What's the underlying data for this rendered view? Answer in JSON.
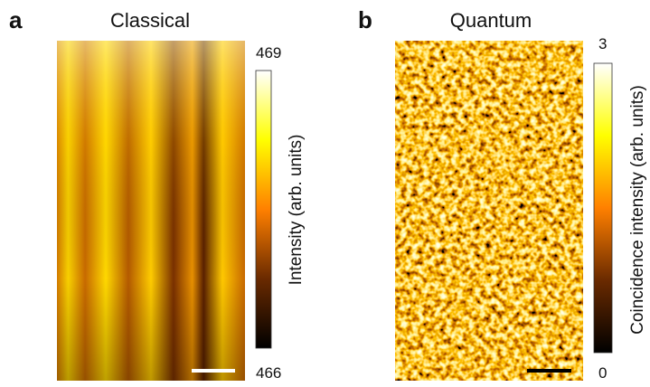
{
  "panels": [
    {
      "label": "a",
      "title": "Classical",
      "colorbar": {
        "max": 469,
        "min": 466,
        "label": "Intensity (arb. units)"
      }
    },
    {
      "label": "b",
      "title": "Quantum",
      "colorbar": {
        "max": 3,
        "min": 0,
        "label": "Coincidence intensity (arb. units)"
      }
    }
  ]
}
